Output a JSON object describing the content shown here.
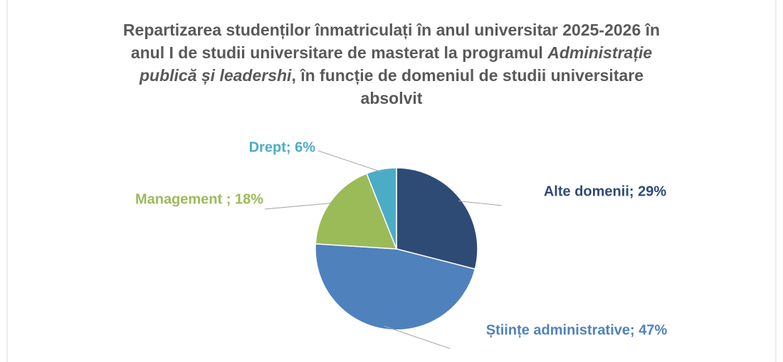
{
  "chart_data": {
    "type": "pie",
    "title": [
      "Repartizarea studenților înmatriculați în anul universitar 2025-2026 în anul I de studii universitare de masterat la programul ",
      "Administrație publică și leadershi",
      ", în funcție de domeniul de studii universitare absolvit"
    ],
    "title_italic": [
      false,
      true,
      false
    ],
    "values": [
      29,
      47,
      18,
      6
    ],
    "value_labels": [
      "Alte domenii; 29%",
      "Științe administrative; 47%",
      "Management ; 18%",
      "Drept; 6%"
    ],
    "colors": [
      "#2E4B75",
      "#4F81BD",
      "#9BBB59",
      "#4BACC6"
    ]
  }
}
